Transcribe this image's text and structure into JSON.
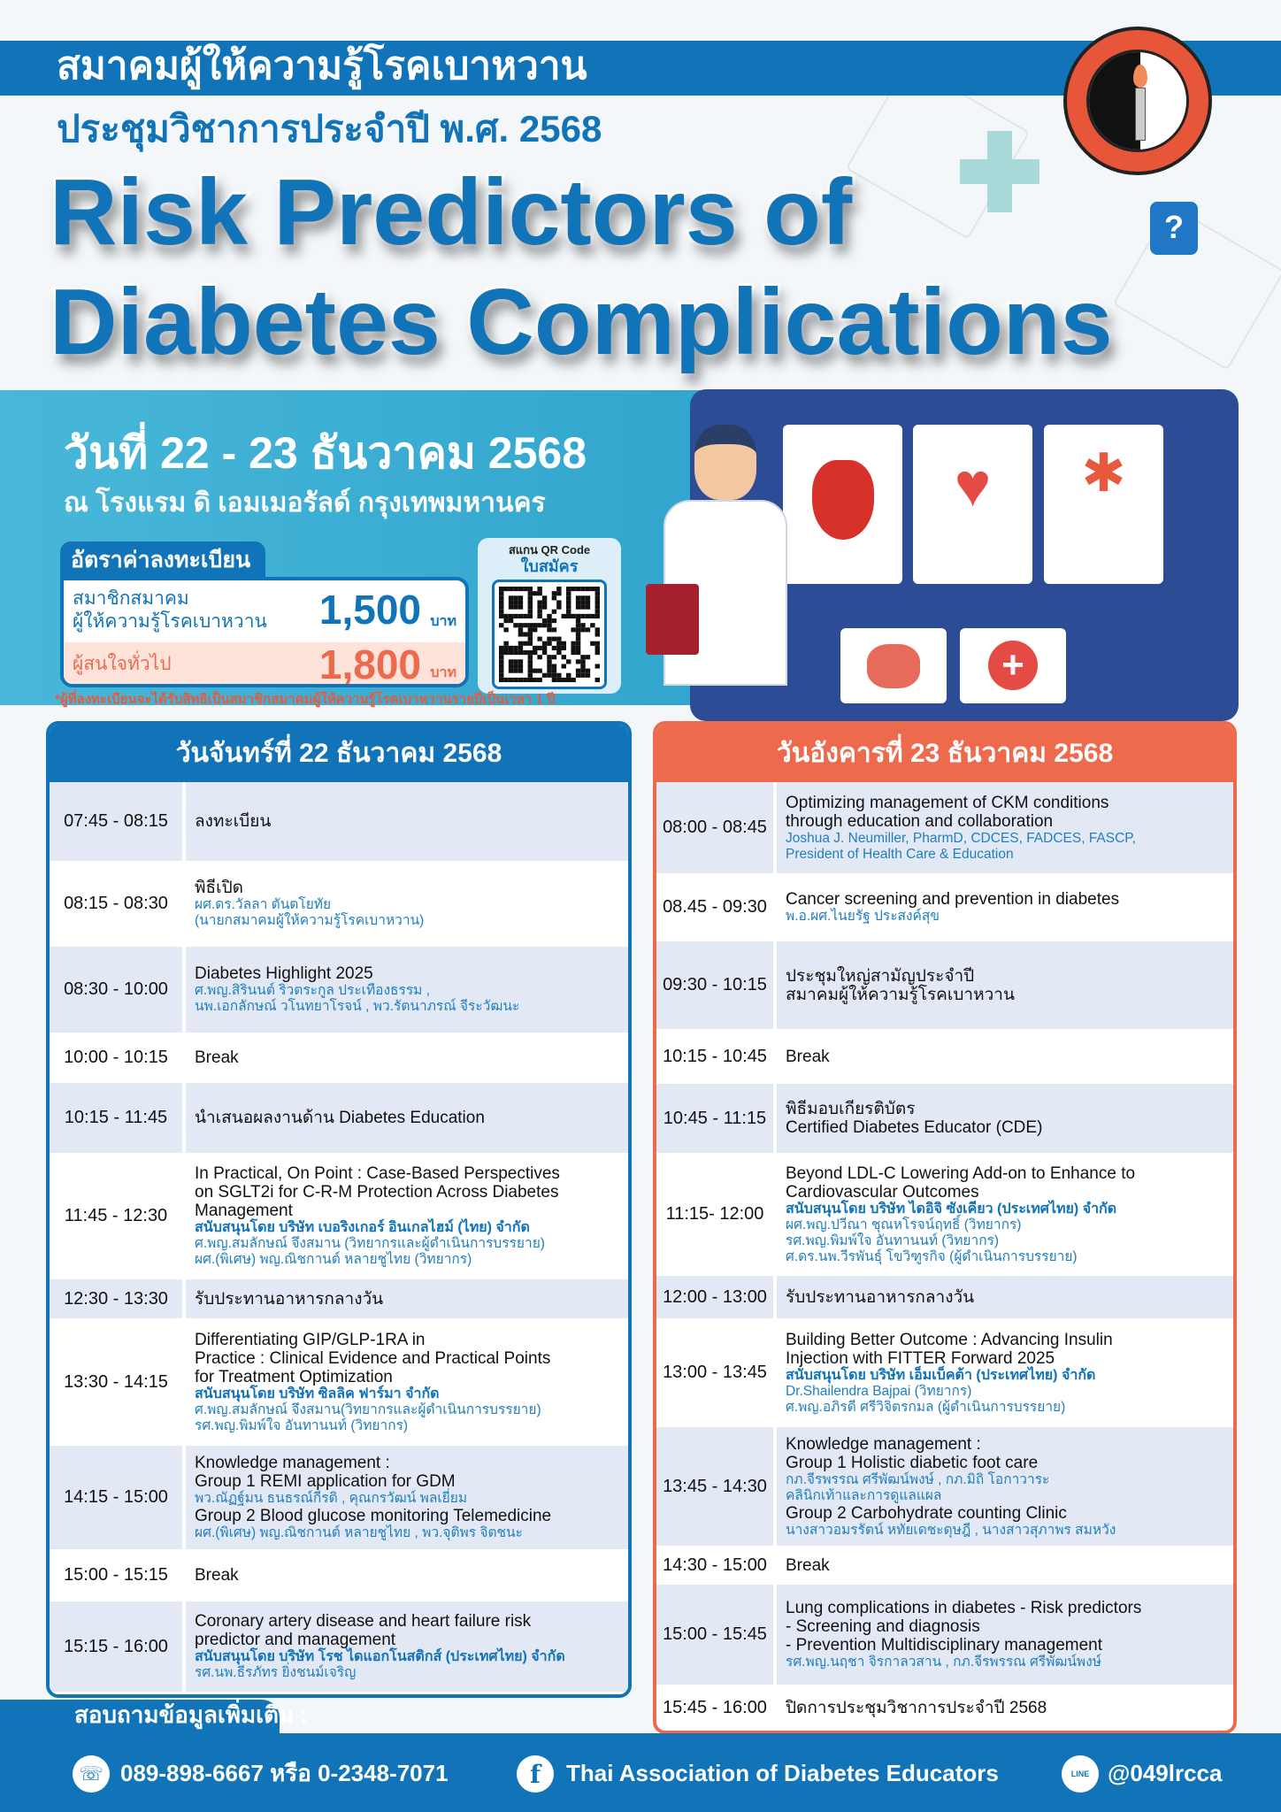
{
  "header": {
    "org_name": "สมาคมผู้ให้ความรู้โรคเบาหวาน",
    "conference": "ประชุมวิชาการประจำปี พ.ศ. 2568",
    "title_line1": "Risk Predictors of",
    "title_line2": "Diabetes Complications",
    "logo_text": "สมาคมผู้ให้ความรู้โรคเบาหวาน Thai Association of Diabetes Educators"
  },
  "event": {
    "date": "วันที่ 22 - 23 ธันวาคม 2568",
    "venue": "ณ โรงแรม ดิ เอมเมอรัลด์  กรุงเทพมหานคร"
  },
  "registration": {
    "heading": "อัตราค่าลงทะเบียน",
    "member_label_1": "สมาชิกสมาคม",
    "member_label_2": "ผู้ให้ความรู้โรคเบาหวาน",
    "member_price": "1,500",
    "general_label": "ผู้สนใจทั่วไป",
    "general_price": "1,800",
    "unit": "บาท",
    "note": "*ผู้ที่ลงทะเบียนจะได้รับสิทธิเป็นสมาชิกสมาคมผู้ให้ความรู้โรคเบาหวานรายปีเป็นเวลา 1 ปี",
    "qr_label_1": "สแกน QR Code",
    "qr_label_2": "ใบสมัคร"
  },
  "colors": {
    "blue": "#1173b8",
    "teal": "#3fb4d6",
    "orange": "#ee6a4c",
    "row_alt": "#e3e9f4"
  },
  "day1": {
    "heading": "วันจันทร์ที่ 22 ธันวาคม 2568",
    "rows": [
      {
        "time": "07:45 - 08:15",
        "lines": [
          [
            "main",
            "ลงทะเบียน"
          ]
        ]
      },
      {
        "time": "08:15 - 08:30",
        "lines": [
          [
            "main",
            "พิธีเปิด"
          ],
          [
            "spk",
            "ผศ.ดร.วัลลา ตันตโยทัย"
          ],
          [
            "spk",
            "(นายกสมาคมผู้ให้ความรู้โรคเบาหวาน)"
          ]
        ]
      },
      {
        "time": "08:30 - 10:00",
        "lines": [
          [
            "main",
            "Diabetes Highlight 2025"
          ],
          [
            "spk",
            "ศ.พญ.สิรินนต์ ริวตระกูล ประเทืองธรรม ,"
          ],
          [
            "spk",
            "นพ.เอกลักษณ์ วโนทยาโรจน์ , พว.รัตนาภรณ์ จีระวัฒนะ"
          ]
        ]
      },
      {
        "time": "10:00 - 10:15",
        "lines": [
          [
            "main",
            "Break"
          ]
        ]
      },
      {
        "time": "10:15 - 11:45",
        "lines": [
          [
            "main",
            "นำเสนอผลงานด้าน Diabetes Education"
          ]
        ]
      },
      {
        "time": "11:45 - 12:30",
        "lines": [
          [
            "main",
            "In Practical, On Point : Case-Based Perspectives"
          ],
          [
            "main",
            "on SGLT2i for C-R-M Protection Across Diabetes"
          ],
          [
            "main",
            "Management"
          ],
          [
            "spon",
            "สนับสนุนโดย บริษัท เบอริงเกอร์ อินเกลไฮม์ (ไทย) จำกัด"
          ],
          [
            "spk",
            "ศ.พญ.สมลักษณ์ จึงสมาน (วิทยากรและผู้ดำเนินการบรรยาย)"
          ],
          [
            "spk",
            "ผศ.(พิเศษ) พญ.ณิชกานต์ หลายชูไทย (วิทยากร)"
          ]
        ]
      },
      {
        "time": "12:30 - 13:30",
        "lines": [
          [
            "main",
            "รับประทานอาหารกลางวัน"
          ]
        ]
      },
      {
        "time": "13:30 - 14:15",
        "lines": [
          [
            "main",
            "Differentiating GIP/GLP-1RA in"
          ],
          [
            "main",
            "Practice : Clinical Evidence and Practical Points"
          ],
          [
            "main",
            "for Treatment Optimization"
          ],
          [
            "spon",
            "สนับสนุนโดย บริษัท ซิลลิค ฟาร์มา จำกัด"
          ],
          [
            "spk",
            "ศ.พญ.สมลักษณ์ จึงสมาน(วิทยากรและผู้ดำเนินการบรรยาย)"
          ],
          [
            "spk",
            "รศ.พญ.พิมพ์ใจ อันทานนท์ (วิทยากร)"
          ]
        ]
      },
      {
        "time": "14:15 - 15:00",
        "lines": [
          [
            "main",
            "Knowledge management :"
          ],
          [
            "main",
            "Group 1 REMI application for GDM"
          ],
          [
            "spk",
            "พว.ณัฏฐ์มน ธนธรณ์กีรติ , คุณกรวัฒน์ พลเยี่ยม"
          ],
          [
            "main",
            "Group 2 Blood glucose monitoring Telemedicine"
          ],
          [
            "spk",
            "ผศ.(พิเศษ) พญ.ณิชกานต์ หลายชูไทย , พว.จุติพร จิตชนะ"
          ]
        ]
      },
      {
        "time": "15:00 - 15:15",
        "lines": [
          [
            "main",
            "Break"
          ]
        ]
      },
      {
        "time": "15:15 - 16:00",
        "lines": [
          [
            "main",
            "Coronary artery disease and heart failure risk"
          ],
          [
            "main",
            "predictor and management"
          ],
          [
            "spon",
            "สนับสนุนโดย บริษัท โรช ไดแอกโนสติกส์ (ประเทศไทย) จำกัด"
          ],
          [
            "spk",
            "รศ.นพ.ธีรภัทร ยิ่งชนม์เจริญ"
          ]
        ]
      }
    ]
  },
  "day2": {
    "heading": "วันอังคารที่ 23 ธันวาคม 2568",
    "rows": [
      {
        "time": "08:00 - 08:45",
        "lines": [
          [
            "main",
            "Optimizing management of CKM conditions"
          ],
          [
            "main",
            "through education and collaboration"
          ],
          [
            "spk",
            "Joshua J. Neumiller, PharmD, CDCES, FADCES, FASCP,"
          ],
          [
            "spk",
            "President of Health Care & Education"
          ]
        ]
      },
      {
        "time": "08.45 - 09:30",
        "lines": [
          [
            "main",
            "Cancer screening and prevention in diabetes"
          ],
          [
            "spk",
            "พ.อ.ผศ.ไนยรัฐ ประสงค์สุข"
          ]
        ]
      },
      {
        "time": "09:30 - 10:15",
        "lines": [
          [
            "main",
            "ประชุมใหญ่สามัญประจำปี"
          ],
          [
            "main",
            "สมาคมผู้ให้ความรู้โรคเบาหวาน"
          ]
        ]
      },
      {
        "time": "10:15 - 10:45",
        "lines": [
          [
            "main",
            "Break"
          ]
        ]
      },
      {
        "time": "10:45 - 11:15",
        "lines": [
          [
            "main",
            "พิธีมอบเกียรติบัตร"
          ],
          [
            "main",
            "Certified Diabetes Educator (CDE)"
          ]
        ]
      },
      {
        "time": "11:15- 12:00",
        "lines": [
          [
            "main",
            "Beyond LDL-C Lowering Add-on to Enhance to"
          ],
          [
            "main",
            "Cardiovascular Outcomes"
          ],
          [
            "spon",
            "สนับสนุนโดย บริษัท ไดอิจิ ซังเคียว (ประเทศไทย) จำกัด"
          ],
          [
            "spk",
            "ผศ.พญ.ปวีณา ชุณหโรจน์ฤทธิ์ (วิทยากร)"
          ],
          [
            "spk",
            "รศ.พญ.พิมพ์ใจ อันทานนท์ (วิทยากร)"
          ],
          [
            "spk",
            "ศ.ดร.นพ.วีรพันธุ์ โขวิฑูรกิจ (ผู้ดำเนินการบรรยาย)"
          ]
        ]
      },
      {
        "time": "12:00 - 13:00",
        "lines": [
          [
            "main",
            "รับประทานอาหารกลางวัน"
          ]
        ]
      },
      {
        "time": "13:00 - 13:45",
        "lines": [
          [
            "main",
            "Building Better Outcome : Advancing Insulin"
          ],
          [
            "main",
            "Injection with FITTER Forward 2025"
          ],
          [
            "spon",
            "สนับสนุนโดย บริษัท เอ็มเบ็คต้า (ประเทศไทย) จำกัด"
          ],
          [
            "spk",
            "Dr.Shailendra Bajpai (วิทยากร)"
          ],
          [
            "spk",
            "ศ.พญ.อภิรดี ศรีวิจิตรกมล (ผู้ดำเนินการบรรยาย)"
          ]
        ]
      },
      {
        "time": "13:45 - 14:30",
        "lines": [
          [
            "main",
            "Knowledge management :"
          ],
          [
            "main",
            "Group 1 Holistic diabetic foot care"
          ],
          [
            "spk",
            "กภ.จีรพรรณ ศรีพัฒน์พงษ์ , กภ.มิถิ โอกาวาระ"
          ],
          [
            "spk",
            "คลินิกเท้าและการดูแลแผล"
          ],
          [
            "main",
            "Group 2 Carbohydrate counting Clinic"
          ],
          [
            "spk",
            "นางสาวอมรรัตน์ หทัยเดชะดุษฎี , นางสาวสุภาพร สมหวัง"
          ]
        ]
      },
      {
        "time": "14:30 - 15:00",
        "lines": [
          [
            "main",
            "Break"
          ]
        ]
      },
      {
        "time": "15:00 - 15:45",
        "lines": [
          [
            "main",
            "Lung complications in diabetes - Risk predictors"
          ],
          [
            "main",
            "- Screening and diagnosis"
          ],
          [
            "main",
            "- Prevention Multidisciplinary management"
          ],
          [
            "spk",
            "รศ.พญ.นฤชา จิรกาลวสาน , กภ.จีรพรรณ ศรีพัฒน์พงษ์"
          ]
        ]
      },
      {
        "time": "15:45 - 16:00",
        "lines": [
          [
            "main",
            "ปิดการประชุมวิชาการประจำปี 2568"
          ]
        ]
      }
    ]
  },
  "footer": {
    "contact_label": "สอบถามข้อมูลเพิ่มเติม :",
    "phone": "089-898-6667 หรือ 0-2348-7071",
    "facebook": "Thai Association of Diabetes Educators",
    "line": "@049lrcca",
    "line_icon_text": "LINE",
    "icons": [
      "phone-icon",
      "facebook-icon",
      "line-icon"
    ]
  }
}
